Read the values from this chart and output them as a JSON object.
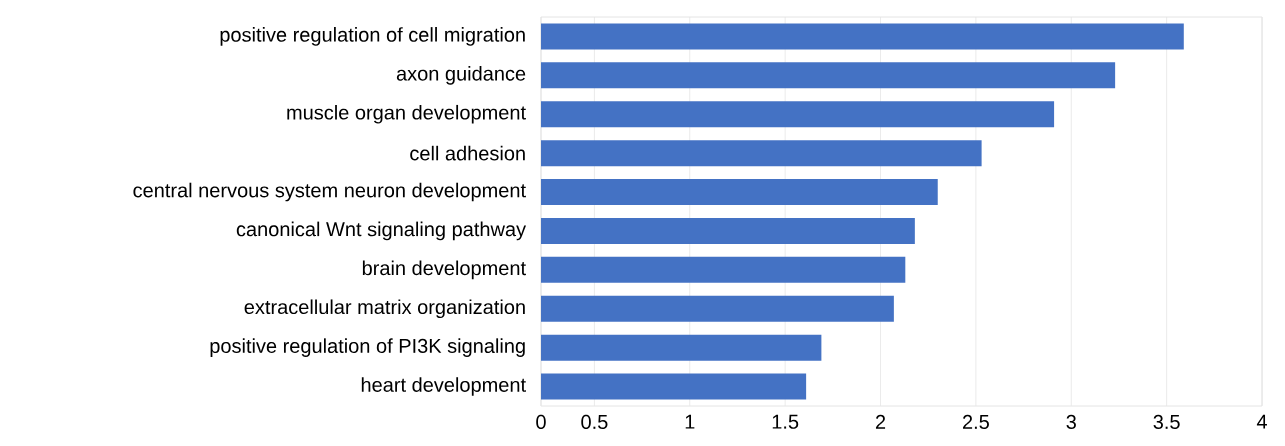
{
  "chart_data": {
    "type": "bar",
    "orientation": "horizontal",
    "categories": [
      "positive regulation of cell migration",
      "axon guidance",
      "muscle organ development",
      "cell adhesion",
      "central nervous system neuron development",
      "canonical Wnt signaling pathway",
      "brain development",
      "extracellular matrix organization",
      "positive regulation of PI3K signaling",
      "heart development"
    ],
    "values": [
      3.59,
      3.23,
      2.91,
      2.53,
      2.3,
      2.18,
      2.13,
      2.07,
      1.69,
      1.61
    ],
    "color": "#4472c4",
    "xlim": [
      0.22,
      4
    ],
    "xticks": [
      {
        "value": 0.22,
        "label": "0"
      },
      0.5,
      1,
      1.5,
      2,
      2.5,
      3,
      3.5,
      4
    ],
    "grid": "x"
  }
}
